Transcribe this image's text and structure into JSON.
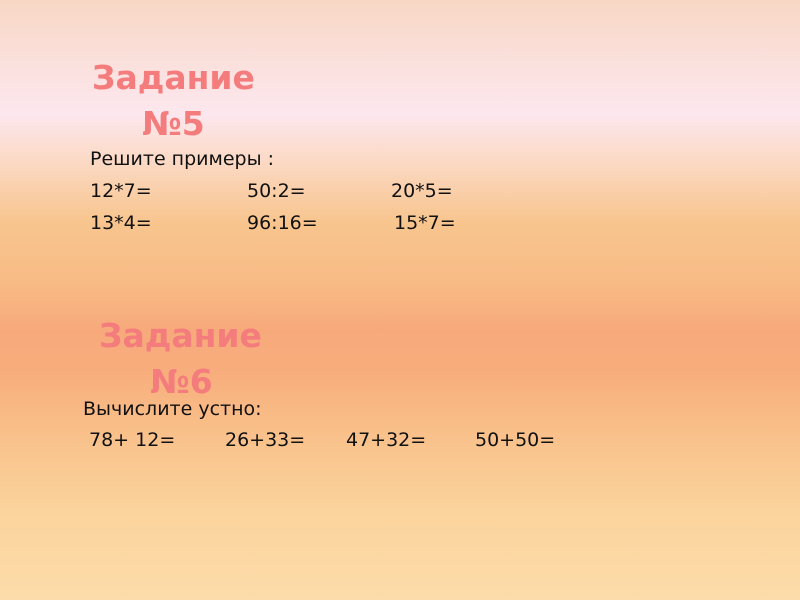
{
  "task5": {
    "title_line1": "Задание",
    "title_line2": "№5",
    "instruction": "Решите примеры :",
    "rows": [
      [
        "12*7=",
        "50:2=",
        "20*5="
      ],
      [
        "13*4=",
        "96:16=",
        "15*7="
      ]
    ]
  },
  "task6": {
    "title_line1": "Задание",
    "title_line2": "№6",
    "instruction": "Вычислите устно:",
    "items": [
      "78+ 12=",
      "26+33=",
      "47+32=",
      "50+50="
    ]
  },
  "colors": {
    "heading": "#f47c7c",
    "text": "#111111"
  }
}
